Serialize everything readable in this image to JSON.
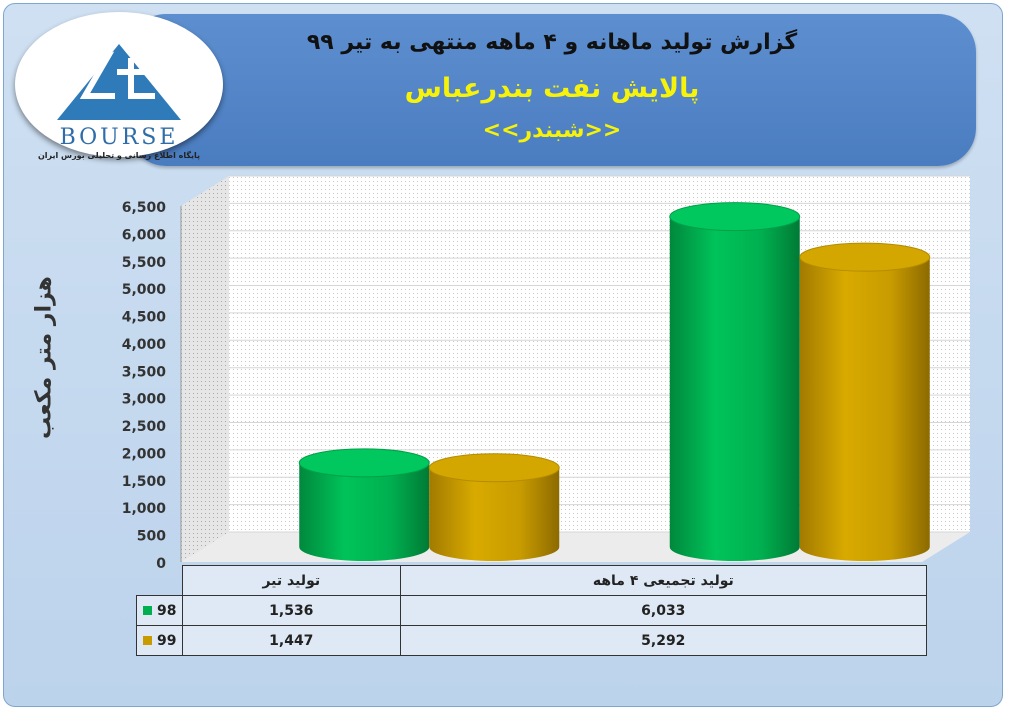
{
  "header": {
    "title": "گزارش تولید ماهانه و ۴ ماهه منتهی به تیر ۹۹",
    "subtitle": "پالایش نفت بندرعباس",
    "symbol": "<<شبندر>>"
  },
  "logo": {
    "word": "BOURSE",
    "tagline": "پایگاه اطلاع رسانی و تحلیلی بورس ایران"
  },
  "colors": {
    "series_98": "#00b050",
    "series_99": "#c89b00",
    "header": "#4f81c4",
    "highlight_text": "#f7f20a"
  },
  "chart_data": {
    "type": "bar",
    "title": "گزارش تولید ماهانه و ۴ ماهه منتهی به تیر ۹۹",
    "ylabel": "هزار متر مکعب",
    "ylim": [
      0,
      6500
    ],
    "yticks": [
      "0",
      "500",
      "1,000",
      "1,500",
      "2,000",
      "2,500",
      "3,000",
      "3,500",
      "4,000",
      "4,500",
      "5,000",
      "5,500",
      "6,000",
      "6,500"
    ],
    "ytick_values": [
      0,
      500,
      1000,
      1500,
      2000,
      2500,
      3000,
      3500,
      4000,
      4500,
      5000,
      5500,
      6000,
      6500
    ],
    "categories": [
      "تولید تیر",
      "تولید تجمیعی ۴ ماهه"
    ],
    "series": [
      {
        "name": "98",
        "values": [
          1536,
          6033
        ],
        "labels": [
          "1,536",
          "6,033"
        ]
      },
      {
        "name": "99",
        "values": [
          1447,
          5292
        ],
        "labels": [
          "1,447",
          "5,292"
        ]
      }
    ],
    "grid": true,
    "legend": "data-table-below"
  }
}
